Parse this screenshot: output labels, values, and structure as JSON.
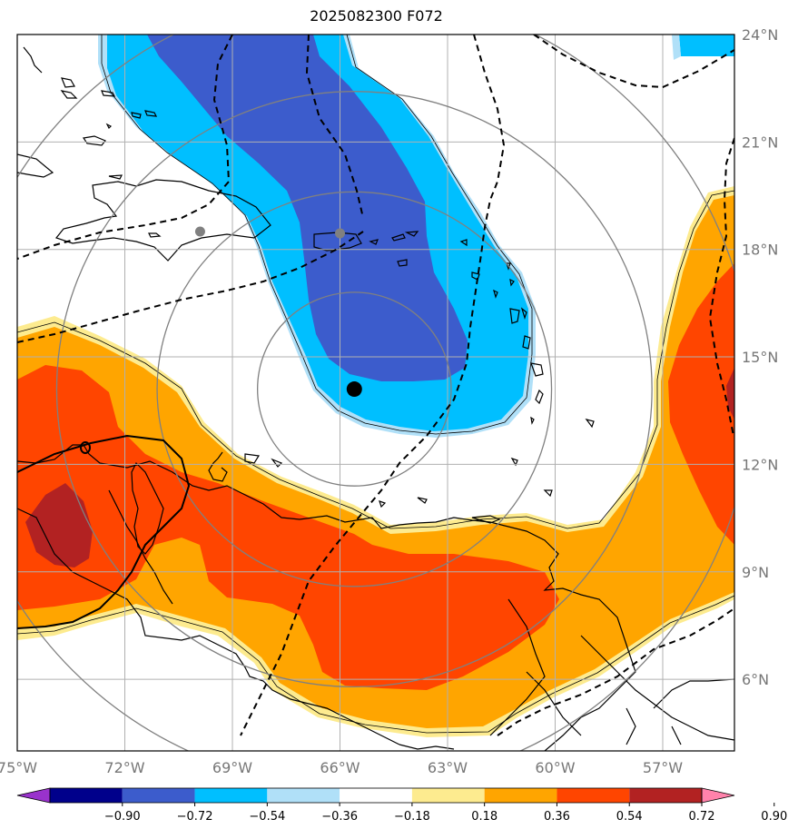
{
  "title": "2025082300 F072",
  "lon_labels": [
    "75°W",
    "72°W",
    "69°W",
    "66°W",
    "63°W",
    "60°W",
    "57°W"
  ],
  "lon_values": [
    -75,
    -72,
    -69,
    -66,
    -63,
    -60,
    -57
  ],
  "lat_labels": [
    "24°N",
    "21°N",
    "18°N",
    "15°N",
    "12°N",
    "9°N",
    "6°N"
  ],
  "lat_values": [
    24,
    21,
    18,
    15,
    12,
    9,
    6
  ],
  "extent": {
    "lon_min": -75.0,
    "lon_max": -55.0,
    "lat_min": 4.0,
    "lat_max": 24.0
  },
  "colorbar": {
    "ticks": [
      "−0.90",
      "−0.72",
      "−0.54",
      "−0.36",
      "−0.18",
      "0.18",
      "0.36",
      "0.54",
      "0.72",
      "0.90"
    ],
    "colors": [
      "#9932cc",
      "#00008b",
      "#3c5ccc",
      "#00bfff",
      "#b0e0f8",
      "#ffffff",
      "#fdeb8f",
      "#ffa500",
      "#ff4500",
      "#b22222",
      "#ff82ab"
    ]
  },
  "storm_center": {
    "lon": -65.6,
    "lat": 14.1
  },
  "points": [
    {
      "name": "gray-point-hispaniola",
      "lon": -69.9,
      "lat": 18.5
    },
    {
      "name": "gray-point-puerto-rico",
      "lon": -66.0,
      "lat": 18.45
    }
  ],
  "range_rings_deg": [
    2.7,
    5.5,
    8.3,
    11.1
  ]
}
